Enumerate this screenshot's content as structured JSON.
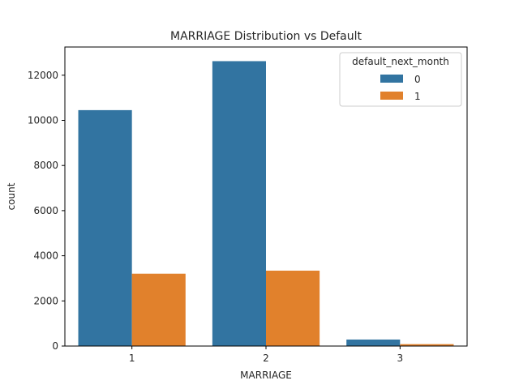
{
  "chart_data": {
    "type": "bar",
    "title": "MARRIAGE Distribution vs Default",
    "xlabel": "MARRIAGE",
    "ylabel": "count",
    "categories": [
      "1",
      "2",
      "3"
    ],
    "series": [
      {
        "name": "0",
        "color": "#3274a1",
        "values": [
          10453,
          12623,
          288
        ]
      },
      {
        "name": "1",
        "color": "#e1812c",
        "values": [
          3206,
          3341,
          84
        ]
      }
    ],
    "ylim": [
      0,
      13250
    ],
    "yticks": [
      0,
      2000,
      4000,
      6000,
      8000,
      10000,
      12000
    ],
    "legend": {
      "title": "default_next_month",
      "placement": "top-right"
    },
    "grid": false
  }
}
